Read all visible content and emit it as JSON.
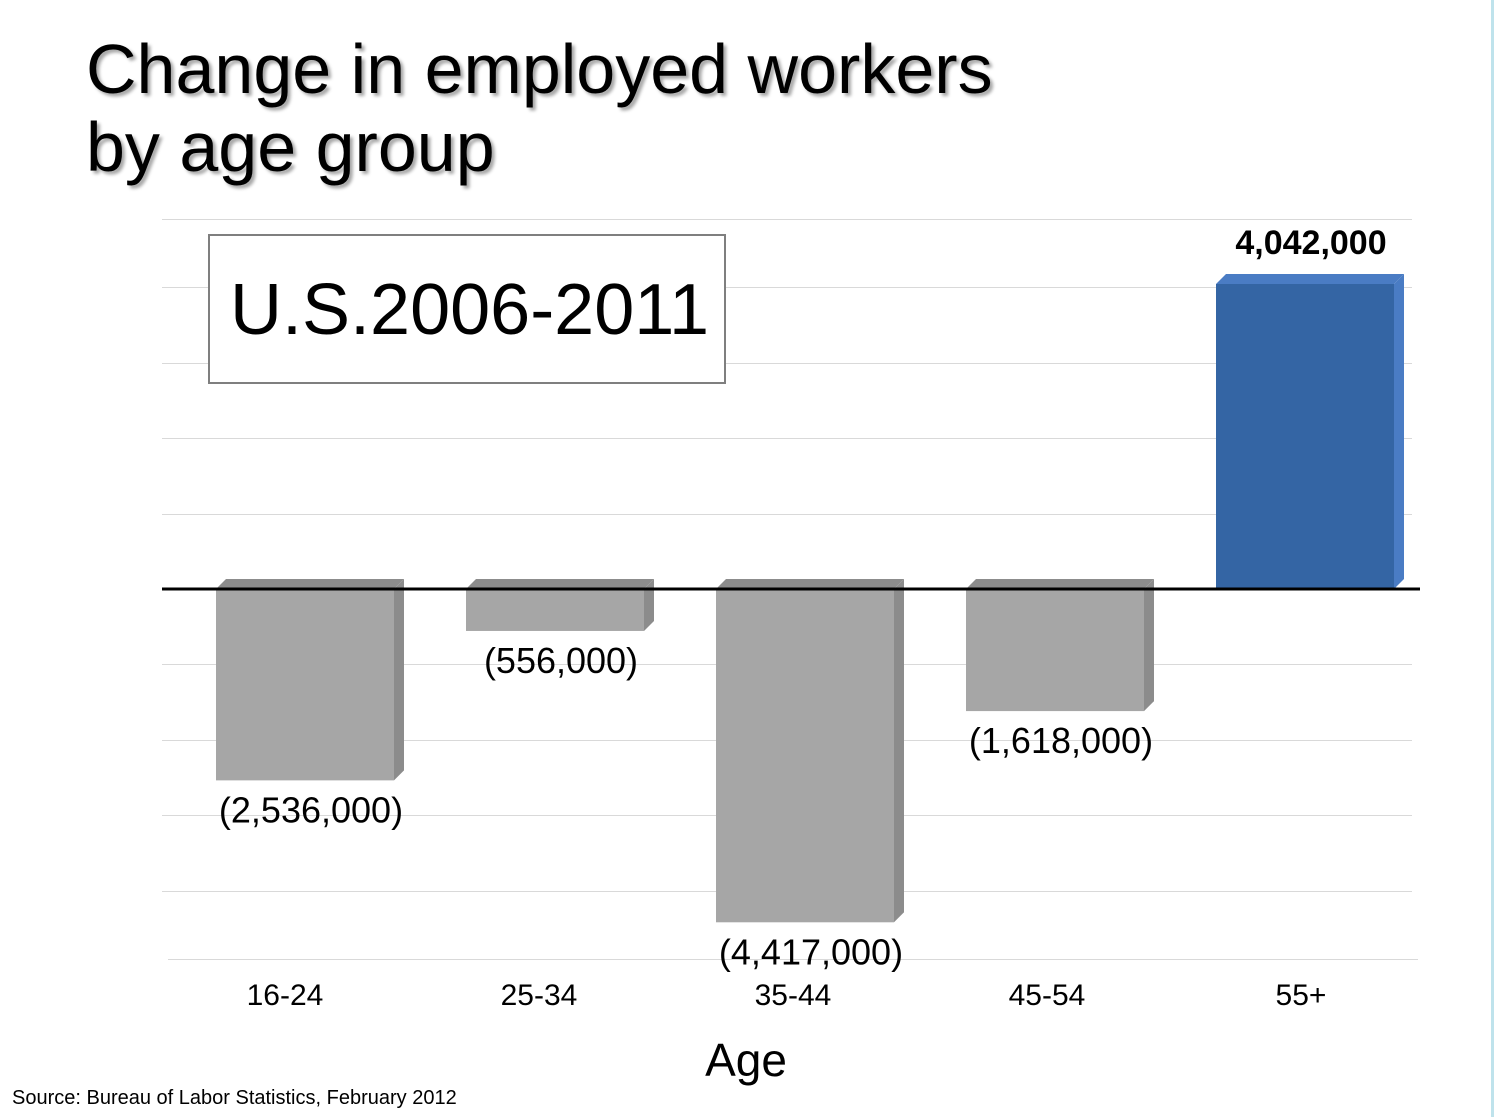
{
  "chart_data": {
    "type": "bar",
    "title": [
      "Change in employed workers",
      "by age group"
    ],
    "annotation": "U.S.2006-2011",
    "xlabel": "Age",
    "ylabel": "",
    "categories": [
      "16-24",
      "25-34",
      "35-44",
      "45-54",
      "55+"
    ],
    "values": [
      -2536000,
      -556000,
      -4417000,
      -1618000,
      4042000
    ],
    "data_labels": [
      "(2,536,000)",
      "(556,000)",
      "(4,417,000)",
      "(1,618,000)",
      "4,042,000"
    ],
    "ylim": [
      -4900000,
      4900000
    ],
    "grid": true,
    "legend": "none",
    "colors": {
      "negative": "#a6a6a6",
      "negative_side": "#8c8c8c",
      "positive": "#3465a4",
      "positive_side": "#4a7cc4",
      "gridline": "#d9d9d9",
      "zero_line": "#000000"
    }
  },
  "source": "Source: Bureau of Labor Statistics, February 2012"
}
